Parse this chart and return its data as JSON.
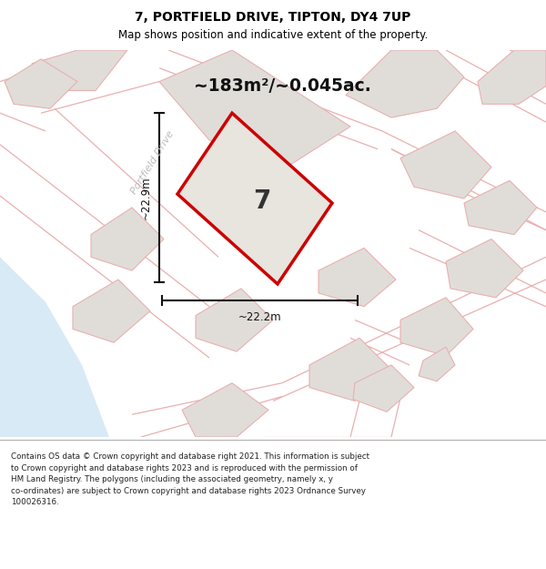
{
  "title_line1": "7, PORTFIELD DRIVE, TIPTON, DY4 7UP",
  "title_line2": "Map shows position and indicative extent of the property.",
  "area_text": "~183m²/~0.045ac.",
  "dim_width": "~22.2m",
  "dim_height": "~22.9m",
  "property_number": "7",
  "street_label": "Portfield Drive",
  "footer_text": "Contains OS data © Crown copyright and database right 2021. This information is subject to Crown copyright and database rights 2023 and is reproduced with the permission of HM Land Registry. The polygons (including the associated geometry, namely x, y co-ordinates) are subject to Crown copyright and database rights 2023 Ordnance Survey 100026316.",
  "map_bg": "#f7f5f3",
  "building_fill": "#e0ddd9",
  "building_edge": "#e8b0b0",
  "road_line": "#e8b0b0",
  "red_color": "#cc0000",
  "light_blue": "#d8eaf5",
  "white": "#ffffff",
  "footer_bg": "#ffffff",
  "title_bg": "#ffffff",
  "dim_line_color": "#111111",
  "text_color": "#111111",
  "street_color": "#bbbbbb"
}
